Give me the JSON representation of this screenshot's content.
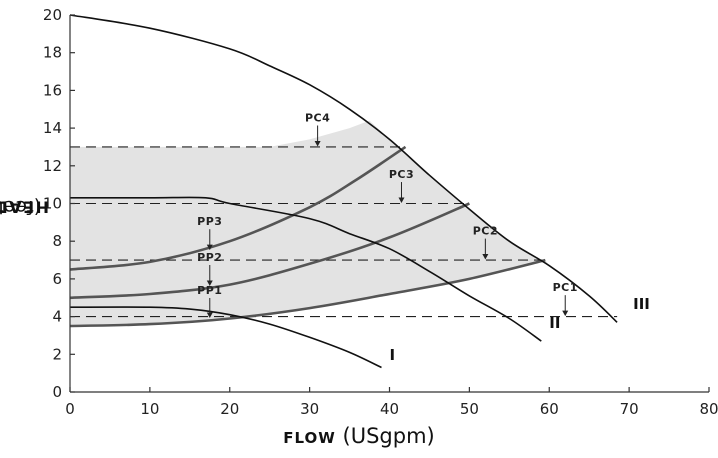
{
  "chart_data": {
    "type": "line",
    "title": "",
    "xlabel_caps": "FLOW",
    "xlabel_rest": " (USgpm)",
    "ylabel_caps": "HEAD",
    "ylabel_rest": "  (feet)",
    "xlim": [
      0,
      80
    ],
    "ylim": [
      0,
      20
    ],
    "xticks": [
      0,
      10,
      20,
      30,
      40,
      50,
      60,
      70,
      80
    ],
    "yticks": [
      0,
      2,
      4,
      6,
      8,
      10,
      12,
      14,
      16,
      18,
      20
    ],
    "grid": false,
    "pump_speed_curves": [
      {
        "name": "I",
        "points": [
          [
            0,
            4.5
          ],
          [
            10,
            4.5
          ],
          [
            15,
            4.4
          ],
          [
            20,
            4.1
          ],
          [
            25,
            3.6
          ],
          [
            30,
            2.9
          ],
          [
            35,
            2.1
          ],
          [
            39,
            1.3
          ]
        ]
      },
      {
        "name": "II",
        "points": [
          [
            0,
            10.3
          ],
          [
            10,
            10.3
          ],
          [
            17,
            10.3
          ],
          [
            20,
            10.0
          ],
          [
            30,
            9.2
          ],
          [
            35,
            8.4
          ],
          [
            40,
            7.6
          ],
          [
            45,
            6.4
          ],
          [
            50,
            5.1
          ],
          [
            55,
            3.9
          ],
          [
            59,
            2.7
          ]
        ]
      },
      {
        "name": "III",
        "points": [
          [
            0,
            20
          ],
          [
            10,
            19.3
          ],
          [
            20,
            18.2
          ],
          [
            25,
            17.3
          ],
          [
            30,
            16.3
          ],
          [
            35,
            15.0
          ],
          [
            40,
            13.4
          ],
          [
            45,
            11.5
          ],
          [
            50,
            9.7
          ],
          [
            55,
            8.0
          ],
          [
            60,
            6.7
          ],
          [
            65,
            5.1
          ],
          [
            68.5,
            3.7
          ]
        ]
      }
    ],
    "system_curves": [
      {
        "name": "",
        "points": [
          [
            0,
            3.5
          ],
          [
            10,
            3.6
          ],
          [
            20,
            3.9
          ],
          [
            30,
            4.45
          ],
          [
            40,
            5.2
          ],
          [
            50,
            6.0
          ],
          [
            59.5,
            7.0
          ]
        ]
      },
      {
        "name": "",
        "points": [
          [
            0,
            5.0
          ],
          [
            10,
            5.2
          ],
          [
            20,
            5.7
          ],
          [
            30,
            6.8
          ],
          [
            40,
            8.2
          ],
          [
            50,
            10.0
          ]
        ]
      },
      {
        "name": "",
        "points": [
          [
            0,
            6.5
          ],
          [
            10,
            6.9
          ],
          [
            20,
            8.0
          ],
          [
            30,
            9.8
          ],
          [
            36,
            11.3
          ],
          [
            42,
            13.0
          ]
        ]
      }
    ],
    "operating_region": {
      "upper_edge": [
        [
          0,
          13
        ],
        [
          25,
          13
        ],
        [
          30,
          13.4
        ],
        [
          35,
          14.0
        ],
        [
          37.5,
          14.4
        ]
      ],
      "lower_edge": [
        [
          0,
          3.5
        ],
        [
          10,
          3.6
        ],
        [
          20,
          3.9
        ],
        [
          30,
          4.45
        ],
        [
          40,
          5.2
        ],
        [
          50,
          6.0
        ],
        [
          59.5,
          7.0
        ]
      ]
    },
    "reference_lines": [
      {
        "y": 13,
        "x_end": 41.5
      },
      {
        "y": 10,
        "x_end": 50
      },
      {
        "y": 7,
        "x_end": 59.5
      },
      {
        "y": 4,
        "x_end": 68.5
      }
    ],
    "mode_markers": [
      {
        "label": "PC4",
        "x": 31,
        "y": 13,
        "label_y": 14.35
      },
      {
        "label": "PC3",
        "x": 41.5,
        "y": 10,
        "label_y": 11.35
      },
      {
        "label": "PC2",
        "x": 52,
        "y": 7,
        "label_y": 8.35
      },
      {
        "label": "PC1",
        "x": 62,
        "y": 4,
        "label_y": 5.35
      },
      {
        "label": "PP3",
        "x": 17.5,
        "y": 7.5,
        "label_y": 8.85
      },
      {
        "label": "PP2",
        "x": 17.5,
        "y": 5.6,
        "label_y": 6.95
      },
      {
        "label": "PP1",
        "x": 17.5,
        "y": 3.9,
        "label_y": 5.2
      }
    ],
    "curve_labels": [
      {
        "text": "I",
        "x": 40,
        "y": 1.7
      },
      {
        "text": "II",
        "x": 60,
        "y": 3.4
      },
      {
        "text": "III",
        "x": 70.5,
        "y": 4.4
      }
    ]
  }
}
